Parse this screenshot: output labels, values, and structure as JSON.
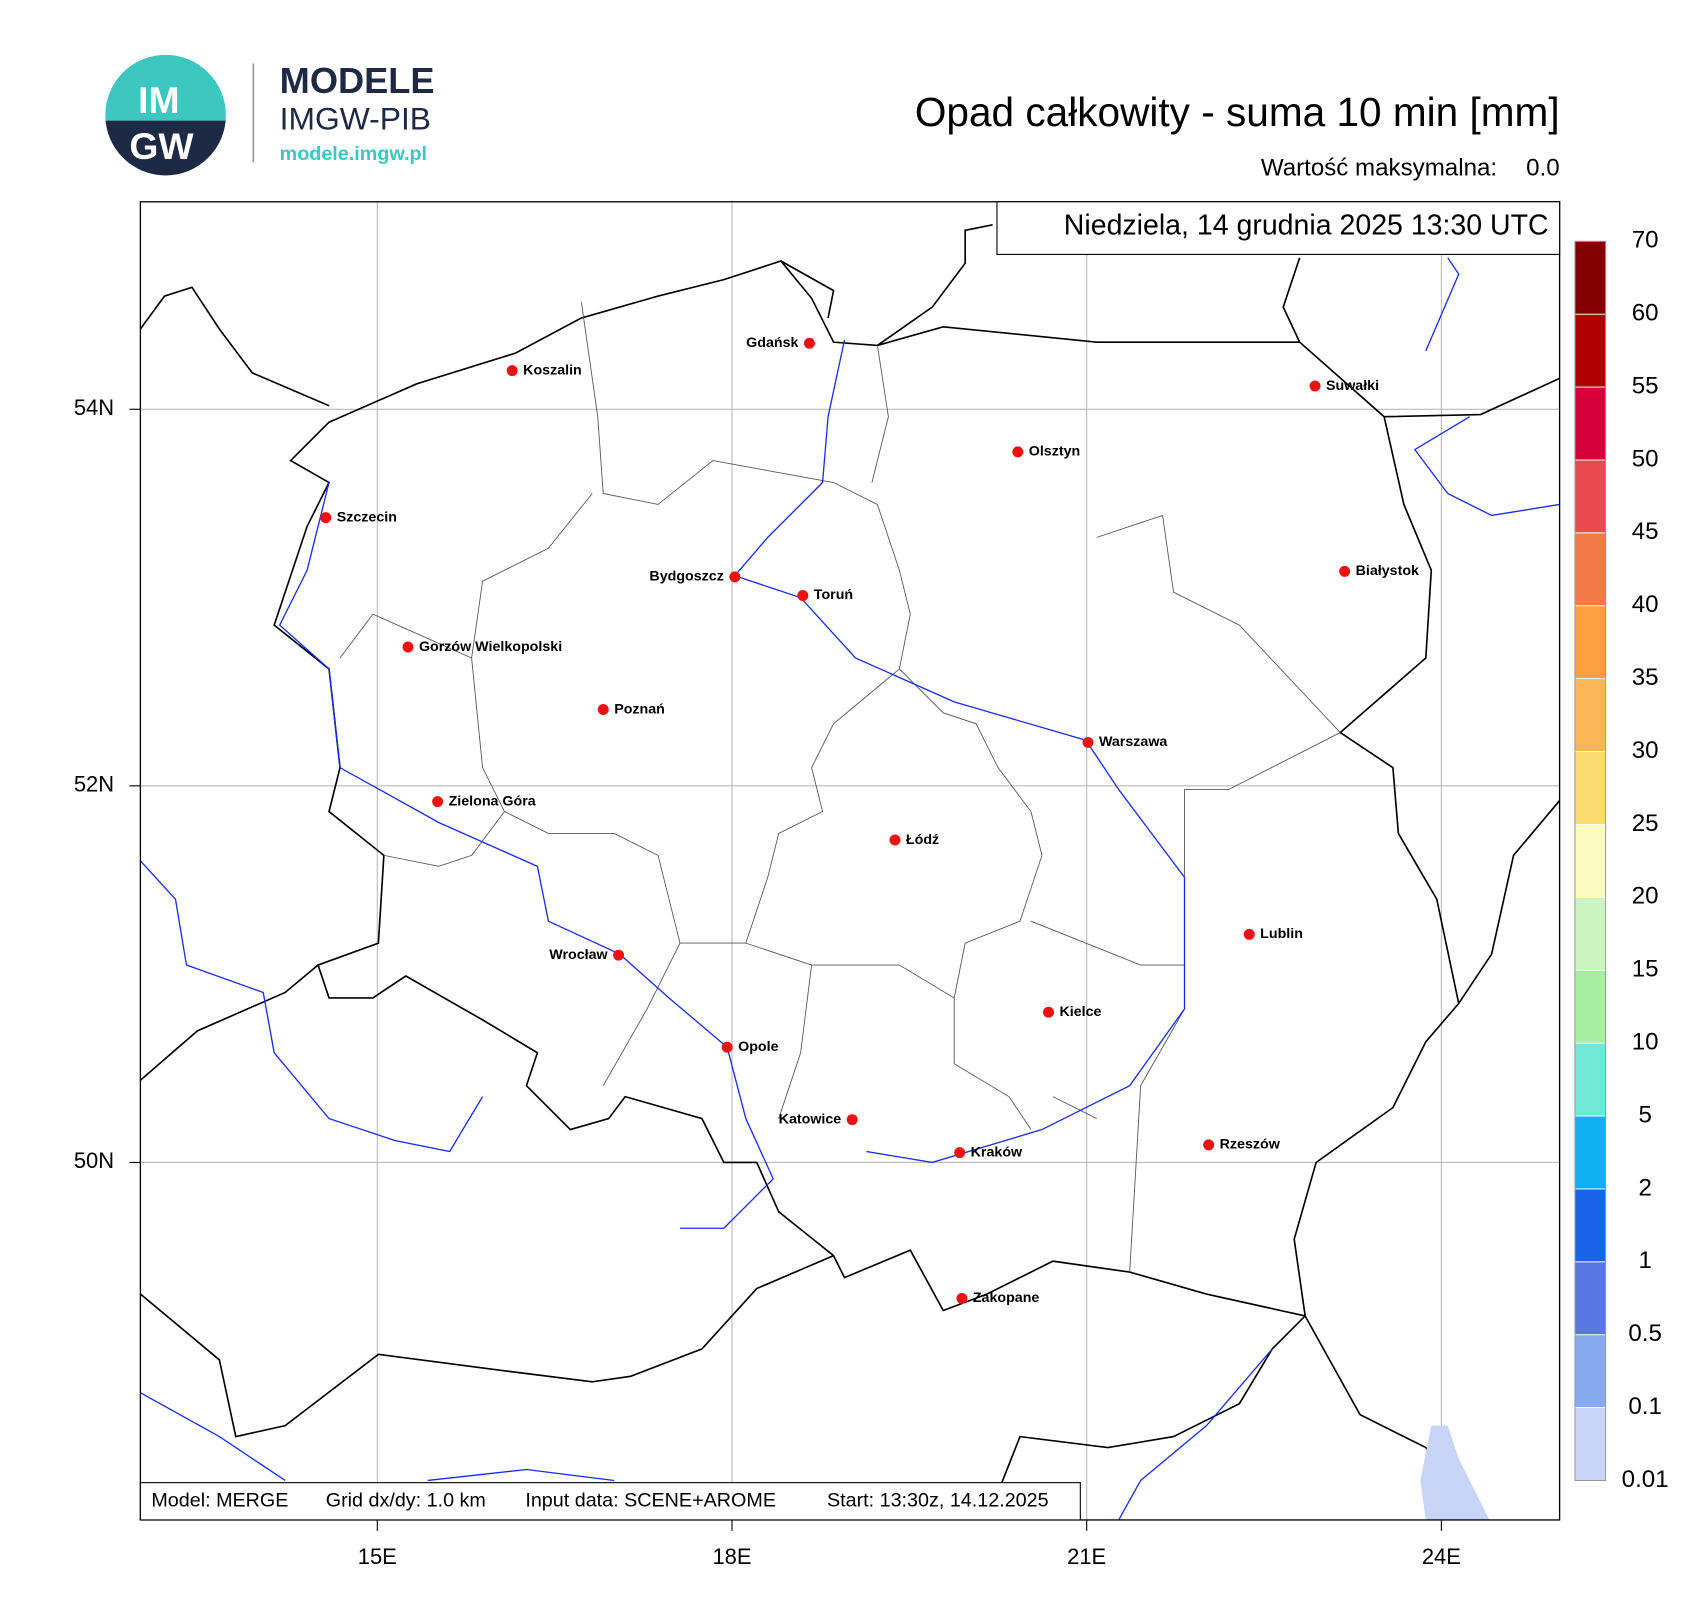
{
  "logo": {
    "mark_top": "IM",
    "mark_bottom": "GW",
    "name": "MODELE",
    "org": "IMGW-PIB",
    "url": "modele.imgw.pl"
  },
  "header": {
    "title": "Opad całkowity - suma 10 min [mm]",
    "max_label": "Wartość maksymalna:",
    "max_value": "0.0"
  },
  "map": {
    "date": "Niedziela, 14 grudnia 2025 13:30 UTC",
    "grid": true,
    "lon_ticks": [
      {
        "value": 15,
        "label": "15E"
      },
      {
        "value": 18,
        "label": "18E"
      },
      {
        "value": 21,
        "label": "21E"
      },
      {
        "value": 24,
        "label": "24E"
      }
    ],
    "lat_ticks": [
      {
        "value": 50,
        "label": "50N"
      },
      {
        "value": 52,
        "label": "52N"
      },
      {
        "value": 54,
        "label": "54N"
      }
    ],
    "cities": [
      "Koszalin",
      "Gdańsk",
      "Suwałki",
      "Olsztyn",
      "Szczecin",
      "Bydgoszcz",
      "Toruń",
      "Białystok",
      "Gorzów Wielkopolski",
      "Poznań",
      "Warszawa",
      "Zielona Góra",
      "Łódź",
      "Lublin",
      "Wrocław",
      "Kielce",
      "Opole",
      "Katowice",
      "Kraków",
      "Rzeszów",
      "Zakopane"
    ],
    "city_color": "#ee1111"
  },
  "footer": [
    "Model: MERGE",
    "Grid dx/dy: 1.0 km",
    "Input data: SCENE+AROME",
    "Start: 13:30z, 14.12.2025"
  ],
  "colorbar": {
    "levels": [
      0.01,
      0.1,
      0.5,
      1,
      2,
      5,
      10,
      15,
      20,
      25,
      30,
      35,
      40,
      45,
      50,
      55,
      60,
      70
    ],
    "colors": [
      "#c8d4f8",
      "#88a8f0",
      "#5878e0",
      "#1a64e8",
      "#10b0f0",
      "#70e8d8",
      "#a8eea0",
      "#c8f5c0",
      "#fdfcc0",
      "#fadc70",
      "#fcb858",
      "#fba040",
      "#f57a4a",
      "#e84a50",
      "#d8003a",
      "#b00000",
      "#800000"
    ]
  }
}
